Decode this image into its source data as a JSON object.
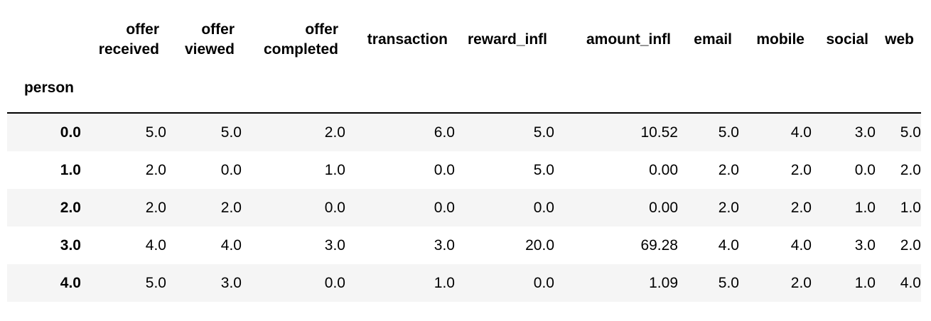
{
  "table": {
    "index_name": "person",
    "columns": [
      [
        "offer",
        "received"
      ],
      [
        "offer",
        "viewed"
      ],
      [
        "offer",
        "completed"
      ],
      [
        "transaction"
      ],
      [
        "reward_infl"
      ],
      [
        "amount_infl"
      ],
      [
        "email"
      ],
      [
        "mobile"
      ],
      [
        "social"
      ],
      [
        "web"
      ]
    ],
    "rows": [
      {
        "index": "0.0",
        "values": [
          "5.0",
          "5.0",
          "2.0",
          "6.0",
          "5.0",
          "10.52",
          "5.0",
          "4.0",
          "3.0",
          "5.0"
        ]
      },
      {
        "index": "1.0",
        "values": [
          "2.0",
          "0.0",
          "1.0",
          "0.0",
          "5.0",
          "0.00",
          "2.0",
          "2.0",
          "0.0",
          "2.0"
        ]
      },
      {
        "index": "2.0",
        "values": [
          "2.0",
          "2.0",
          "0.0",
          "0.0",
          "0.0",
          "0.00",
          "2.0",
          "2.0",
          "1.0",
          "1.0"
        ]
      },
      {
        "index": "3.0",
        "values": [
          "4.0",
          "4.0",
          "3.0",
          "3.0",
          "20.0",
          "69.28",
          "4.0",
          "4.0",
          "3.0",
          "2.0"
        ]
      },
      {
        "index": "4.0",
        "values": [
          "5.0",
          "3.0",
          "0.0",
          "1.0",
          "0.0",
          "1.09",
          "5.0",
          "2.0",
          "1.0",
          "4.0"
        ]
      }
    ]
  }
}
